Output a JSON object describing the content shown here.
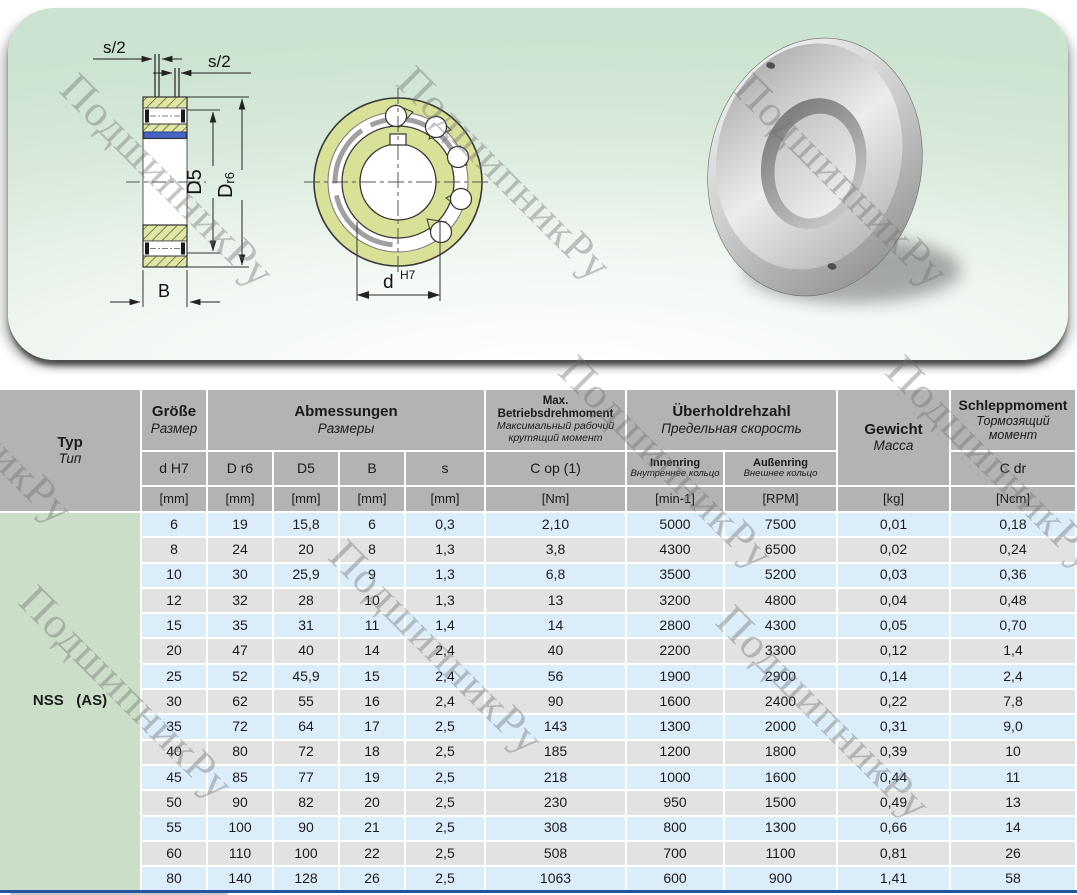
{
  "watermark": "ПодшипникРу",
  "drawing": {
    "labels": {
      "s_half": "s/2",
      "d5": "D5",
      "dr6_main": "D",
      "dr6_sub": "r6",
      "b": "B",
      "d_main": "d",
      "d_sup": "H7"
    }
  },
  "table": {
    "header": {
      "typ_de": "Typ",
      "typ_ru": "Тип",
      "groesse_de": "Größe",
      "groesse_ru": "Размер",
      "abmessungen_de": "Abmessungen",
      "abmessungen_ru": "Размеры",
      "max_de": "Max. Betriebsdrehmoment",
      "max_ru1": "Максимальный рабочий",
      "max_ru2": "крутящий момент",
      "ueberhol_de": "Überholdrehzahl",
      "ueberhol_ru": "Предельная скорость",
      "gewicht_de": "Gewicht",
      "gewicht_ru": "Масса",
      "schlepp_de": "Schleppmoment",
      "schlepp_ru1": "Тормозящий",
      "schlepp_ru2": "момент",
      "col_d": "d H7",
      "col_D": "D r6",
      "col_D5": "D5",
      "col_B": "B",
      "col_s": "s",
      "col_cop": "C op (1)",
      "innen_de": "Innenring",
      "innen_ru": "Внутреннее кольцо",
      "aussen_de": "Außenring",
      "aussen_ru": "Внешнее кольцо",
      "col_cdr": "C dr",
      "units": [
        "[mm]",
        "[mm]",
        "[mm]",
        "[mm]",
        "[mm]",
        "[Nm]",
        "[min-1]",
        "[RPM]",
        "[kg]",
        "[Ncm]"
      ]
    },
    "type_label": "NSS   (AS)",
    "rows": [
      [
        "6",
        "19",
        "15,8",
        "6",
        "0,3",
        "2,10",
        "5000",
        "7500",
        "0,01",
        "0,18"
      ],
      [
        "8",
        "24",
        "20",
        "8",
        "1,3",
        "3,8",
        "4300",
        "6500",
        "0,02",
        "0,24"
      ],
      [
        "10",
        "30",
        "25,9",
        "9",
        "1,3",
        "6,8",
        "3500",
        "5200",
        "0,03",
        "0,36"
      ],
      [
        "12",
        "32",
        "28",
        "10",
        "1,3",
        "13",
        "3200",
        "4800",
        "0,04",
        "0,48"
      ],
      [
        "15",
        "35",
        "31",
        "11",
        "1,4",
        "14",
        "2800",
        "4300",
        "0,05",
        "0,70"
      ],
      [
        "20",
        "47",
        "40",
        "14",
        "2,4",
        "40",
        "2200",
        "3300",
        "0,12",
        "1,4"
      ],
      [
        "25",
        "52",
        "45,9",
        "15",
        "2,4",
        "56",
        "1900",
        "2900",
        "0,14",
        "2,4"
      ],
      [
        "30",
        "62",
        "55",
        "16",
        "2,4",
        "90",
        "1600",
        "2400",
        "0,22",
        "7,8"
      ],
      [
        "35",
        "72",
        "64",
        "17",
        "2,5",
        "143",
        "1300",
        "2000",
        "0,31",
        "9,0"
      ],
      [
        "40",
        "80",
        "72",
        "18",
        "2,5",
        "185",
        "1200",
        "1800",
        "0,39",
        "10"
      ],
      [
        "45",
        "85",
        "77",
        "19",
        "2,5",
        "218",
        "1000",
        "1600",
        "0,44",
        "11"
      ],
      [
        "50",
        "90",
        "82",
        "20",
        "2,5",
        "230",
        "950",
        "1500",
        "0,49",
        "13"
      ],
      [
        "55",
        "100",
        "90",
        "21",
        "2,5",
        "308",
        "800",
        "1300",
        "0,66",
        "14"
      ],
      [
        "60",
        "110",
        "100",
        "22",
        "2,5",
        "508",
        "700",
        "1100",
        "0,81",
        "26"
      ],
      [
        "80",
        "140",
        "128",
        "26",
        "2,5",
        "1063",
        "600",
        "900",
        "1,41",
        "58"
      ]
    ],
    "colors": {
      "header_bg": "#b3b3b3",
      "row_blue": "#dcedfa",
      "row_gray": "#e3e2e0",
      "type_bg": "#cbdfc8",
      "bottom_line": "#27549f"
    }
  }
}
